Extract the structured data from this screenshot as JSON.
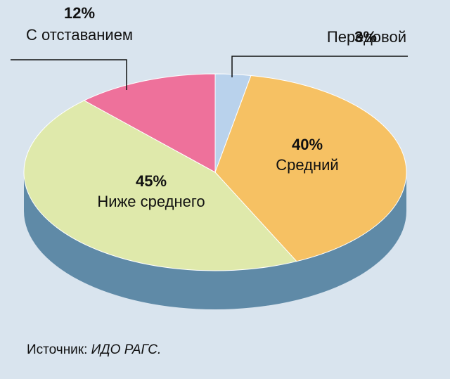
{
  "chart_data": {
    "type": "pie",
    "categories": [
      "Передовой",
      "Средний",
      "Ниже среднего",
      "С отставанием"
    ],
    "values": [
      3,
      40,
      45,
      12
    ],
    "value_labels": [
      "3%",
      "40%",
      "45%",
      "12%"
    ],
    "colors": [
      "#b9d2ec",
      "#f6c163",
      "#dfe9ab",
      "#ee719b"
    ]
  },
  "source": {
    "label": "Источник:",
    "text": "ИДО РАГС."
  }
}
